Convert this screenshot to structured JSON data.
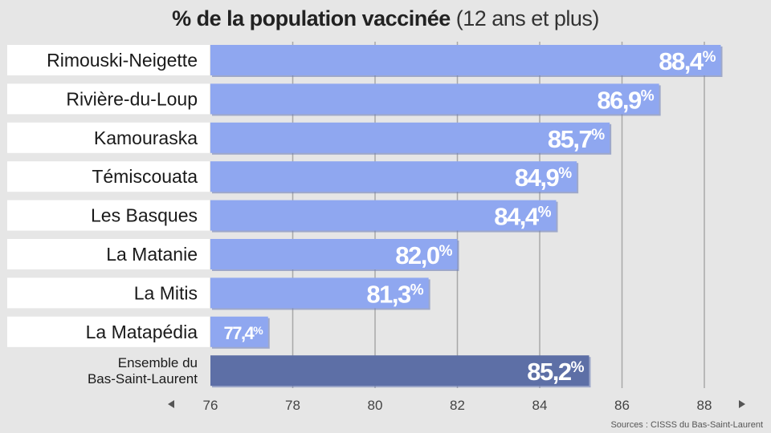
{
  "chart_data": {
    "type": "bar",
    "orientation": "horizontal",
    "title_bold": "% de la population vaccinée",
    "title_light": "(12 ans et plus)",
    "categories": [
      "Rimouski-Neigette",
      "Rivière-du-Loup",
      "Kamouraska",
      "Témiscouata",
      "Les Basques",
      "La Matanie",
      "La Mitis",
      "La Matapédia",
      "Ensemble du Bas-Saint-Laurent"
    ],
    "category_lines": [
      [
        "Rimouski-Neigette"
      ],
      [
        "Rivière-du-Loup"
      ],
      [
        "Kamouraska"
      ],
      [
        "Témiscouata"
      ],
      [
        "Les Basques"
      ],
      [
        "La Matanie"
      ],
      [
        "La Mitis"
      ],
      [
        "La Matapédia"
      ],
      [
        "Ensemble du",
        "Bas-Saint-Laurent"
      ]
    ],
    "values": [
      88.4,
      86.9,
      85.7,
      84.9,
      84.4,
      82.0,
      81.3,
      77.4,
      85.2
    ],
    "value_labels": [
      "88,4",
      "86,9",
      "85,7",
      "84,9",
      "84,4",
      "82,0",
      "81,3",
      "77,4",
      "85,2"
    ],
    "value_suffix": "%",
    "highlight_index": 8,
    "xlim": [
      76,
      89
    ],
    "xticks": [
      76,
      78,
      80,
      82,
      84,
      86,
      88
    ],
    "xtick_labels": [
      "76",
      "78",
      "80",
      "82",
      "84",
      "86",
      "88"
    ],
    "grid": true,
    "colors": {
      "bar": "#8fa7f0",
      "bar_highlight": "#5d6fa6",
      "bar_shadow": "#6e7fb8",
      "grid": "#a8a8a8",
      "label_bg": "#ffffff"
    }
  },
  "source": "Sources : CISSS du Bas-Saint-Laurent"
}
